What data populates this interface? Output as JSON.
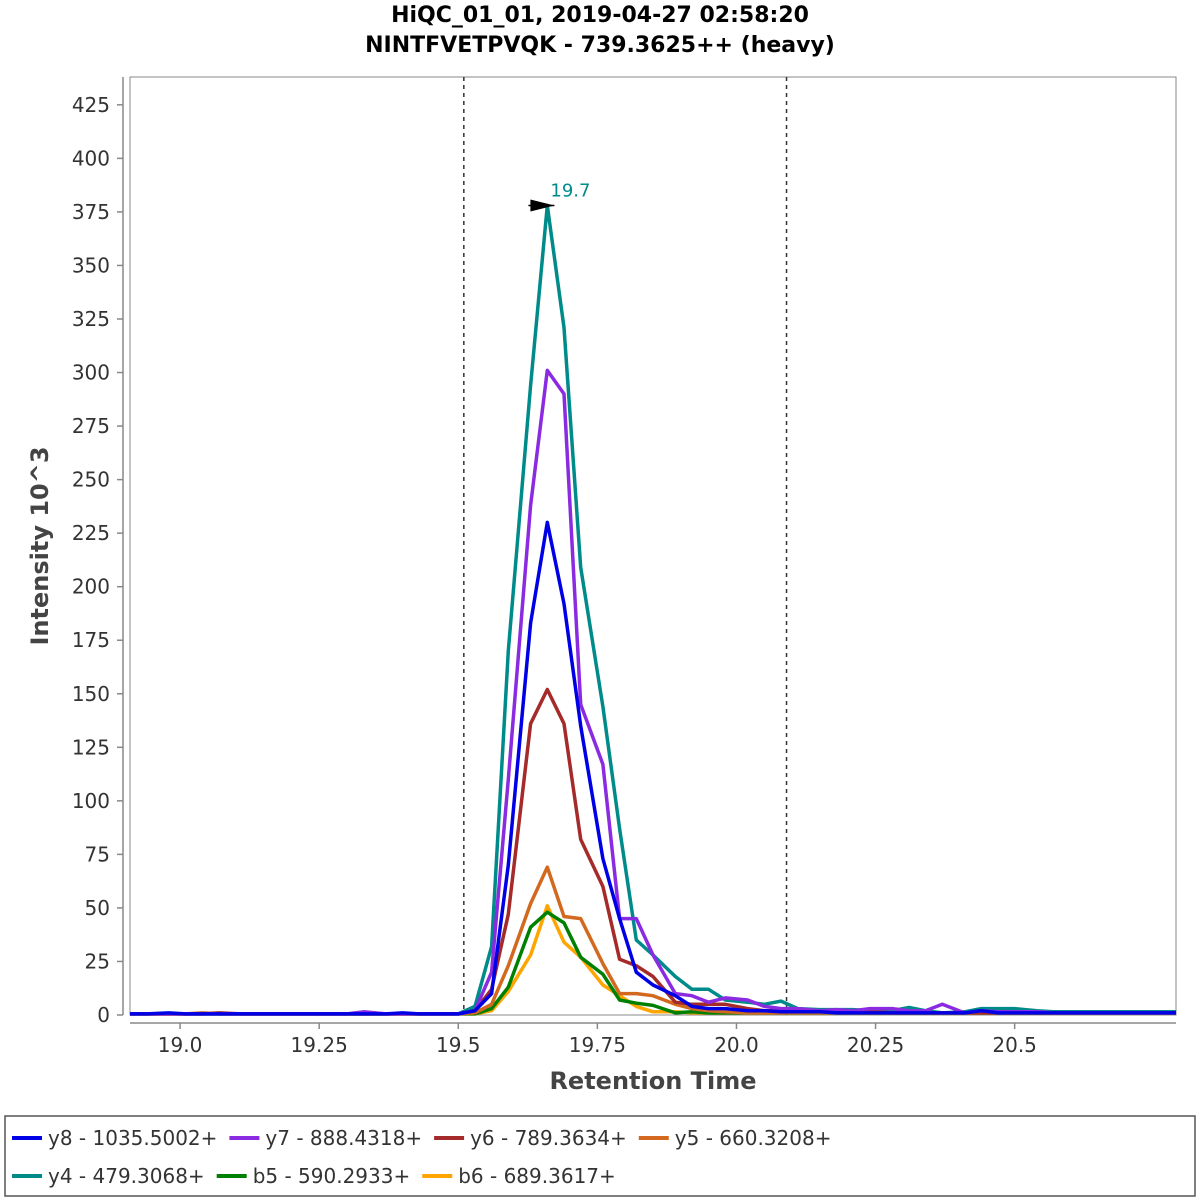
{
  "chart_data": {
    "type": "line",
    "title": "HiQC_01_01, 2019-04-27 02:58:20",
    "subtitle": "NINTFVETPVQK - 739.3625++ (heavy)",
    "xlabel": "Retention Time",
    "ylabel": "Intensity 10^3",
    "xlim": [
      18.91,
      20.79
    ],
    "ylim": [
      0,
      438
    ],
    "xticks": [
      19.0,
      19.25,
      19.5,
      19.75,
      20.0,
      20.25,
      20.5
    ],
    "xtick_labels": [
      "19.0",
      "19.25",
      "19.5",
      "19.75",
      "20.0",
      "20.25",
      "20.5"
    ],
    "yticks": [
      0,
      25,
      50,
      75,
      100,
      125,
      150,
      175,
      200,
      225,
      250,
      275,
      300,
      325,
      350,
      375,
      400,
      425
    ],
    "ytick_labels": [
      "0",
      "25",
      "50",
      "75",
      "100",
      "125",
      "150",
      "175",
      "200",
      "225",
      "250",
      "275",
      "300",
      "325",
      "350",
      "375",
      "400",
      "425"
    ],
    "grid": false,
    "legend_position": "bottom",
    "integration_bounds": [
      19.51,
      20.09
    ],
    "annotation": {
      "text": "19.7",
      "x": 19.68,
      "y": 378,
      "color": "#008b8b"
    },
    "x": [
      18.91,
      18.94,
      18.98,
      19.01,
      19.04,
      19.07,
      19.11,
      19.14,
      19.17,
      19.2,
      19.24,
      19.27,
      19.3,
      19.33,
      19.37,
      19.4,
      19.43,
      19.46,
      19.5,
      19.53,
      19.56,
      19.59,
      19.63,
      19.66,
      19.69,
      19.72,
      19.76,
      19.79,
      19.82,
      19.85,
      19.89,
      19.92,
      19.95,
      19.98,
      20.02,
      20.05,
      20.08,
      20.11,
      20.15,
      20.18,
      20.21,
      20.24,
      20.28,
      20.31,
      20.34,
      20.37,
      20.41,
      20.44,
      20.47,
      20.5,
      20.54,
      20.57,
      20.6,
      20.63,
      20.67,
      20.7,
      20.73,
      20.76,
      20.79
    ],
    "series": [
      {
        "name": "y8 - 1035.5002+",
        "color": "#0000e6",
        "values": [
          0.5,
          0.5,
          1,
          0.5,
          0.5,
          0.5,
          0.5,
          0.5,
          0.5,
          0.5,
          0.5,
          0.5,
          0.5,
          0.5,
          0.5,
          1,
          0.5,
          0.5,
          0.5,
          2,
          10,
          70,
          183,
          230,
          192,
          135,
          73,
          45,
          20,
          14,
          9,
          4,
          3,
          3,
          2,
          2,
          1.5,
          1.5,
          1.5,
          1,
          1,
          1,
          1,
          1,
          1,
          1,
          1,
          2,
          1,
          1,
          1,
          1,
          1,
          1,
          1,
          1,
          1,
          1,
          1
        ]
      },
      {
        "name": "y7 - 888.4318+",
        "color": "#8a2be2",
        "values": [
          0.5,
          0.5,
          0.5,
          0.5,
          0.5,
          0.5,
          0.5,
          0.5,
          0.5,
          0.5,
          0.5,
          0.5,
          0.5,
          1.5,
          0.5,
          0.5,
          0.5,
          0.5,
          0.5,
          2,
          20,
          110,
          238,
          301,
          290,
          145,
          117,
          45,
          45,
          28,
          10,
          9,
          6,
          8,
          7,
          4,
          3,
          3,
          2,
          2.5,
          2,
          3,
          3,
          2,
          2,
          5,
          1,
          2,
          1.5,
          1.5,
          1.5,
          1,
          1,
          1,
          1,
          1,
          1,
          1,
          1
        ]
      },
      {
        "name": "y6 - 789.3634+",
        "color": "#a52a2a",
        "values": [
          0.5,
          0.5,
          0.5,
          0.5,
          0.5,
          1,
          0.5,
          0.5,
          0.5,
          0.5,
          0.5,
          0.5,
          0.5,
          0.5,
          0.5,
          0.5,
          0.5,
          0.5,
          0.5,
          2,
          12,
          47,
          136,
          152,
          136,
          82,
          60,
          26,
          23,
          18,
          6,
          5,
          5,
          5,
          3,
          2,
          2,
          1.5,
          2,
          1.5,
          1.5,
          1.5,
          1,
          1,
          1,
          1,
          1,
          1,
          1,
          1,
          1,
          1,
          1,
          1,
          1,
          1,
          1,
          1,
          1
        ]
      },
      {
        "name": "y5 - 660.3208+",
        "color": "#d2691e",
        "values": [
          0.5,
          0.5,
          0.5,
          0.5,
          1,
          0.5,
          0.5,
          0.5,
          0.5,
          0.5,
          0.5,
          0.5,
          0.5,
          0.5,
          0.5,
          0.5,
          0.5,
          0.5,
          0.5,
          1,
          5,
          23,
          52,
          69,
          46,
          45,
          24,
          10,
          10,
          9,
          5,
          3,
          2,
          1.5,
          1,
          1,
          1,
          1,
          1,
          1,
          1,
          1,
          1,
          1,
          1,
          1,
          1,
          1,
          1,
          1,
          1,
          1,
          1,
          1,
          1,
          1,
          1,
          1,
          1
        ]
      },
      {
        "name": "y4 - 479.3068+",
        "color": "#008b8b",
        "values": [
          0.5,
          0.5,
          0.5,
          0.5,
          0.5,
          0.5,
          0.5,
          0.5,
          0.5,
          0.5,
          0.5,
          0.5,
          0.5,
          0.5,
          0.5,
          0.5,
          0.5,
          0.5,
          0.5,
          4,
          32,
          170,
          294,
          378,
          321,
          209,
          144,
          87,
          35,
          28,
          18,
          12,
          12,
          7,
          6,
          5,
          6.5,
          3,
          2.5,
          2.5,
          2.5,
          2,
          2,
          3.5,
          2,
          1,
          1.5,
          3,
          3,
          3,
          2,
          1.5,
          1.5,
          1.5,
          1.5,
          1.5,
          1.5,
          1.5,
          1.5
        ]
      },
      {
        "name": "b5 - 590.2933+",
        "color": "#008000",
        "values": [
          0.5,
          0.5,
          0.5,
          0.5,
          0.5,
          0.5,
          0.5,
          0.5,
          0.5,
          0.5,
          0.5,
          0.5,
          0.5,
          0.5,
          0.5,
          0.5,
          0.5,
          0.5,
          0.5,
          0.5,
          3,
          13,
          41,
          48,
          43,
          27,
          19,
          7,
          5.5,
          4.5,
          1,
          1.5,
          1,
          1,
          1,
          1,
          1,
          1,
          1,
          1,
          1,
          1,
          1,
          1,
          1,
          1,
          1,
          1,
          1,
          1,
          1,
          1,
          1,
          1,
          1,
          1,
          1,
          1,
          1
        ]
      },
      {
        "name": "b6 - 689.3617+",
        "color": "#ffa500",
        "values": [
          0.5,
          0.5,
          0.5,
          0.5,
          0.5,
          0.5,
          0.5,
          0.5,
          0.5,
          0.5,
          0.5,
          0.5,
          0.5,
          0.5,
          0.5,
          0.5,
          0.5,
          0.5,
          0.5,
          0.5,
          2,
          11,
          28,
          51,
          34,
          27,
          14,
          9,
          4,
          1.5,
          1.5,
          1,
          1,
          1,
          1,
          1,
          1,
          1,
          1,
          1,
          1,
          1,
          1,
          1,
          1,
          1,
          1,
          1,
          1,
          1,
          1,
          1,
          1,
          1,
          1,
          1,
          1,
          1,
          1
        ]
      }
    ]
  }
}
